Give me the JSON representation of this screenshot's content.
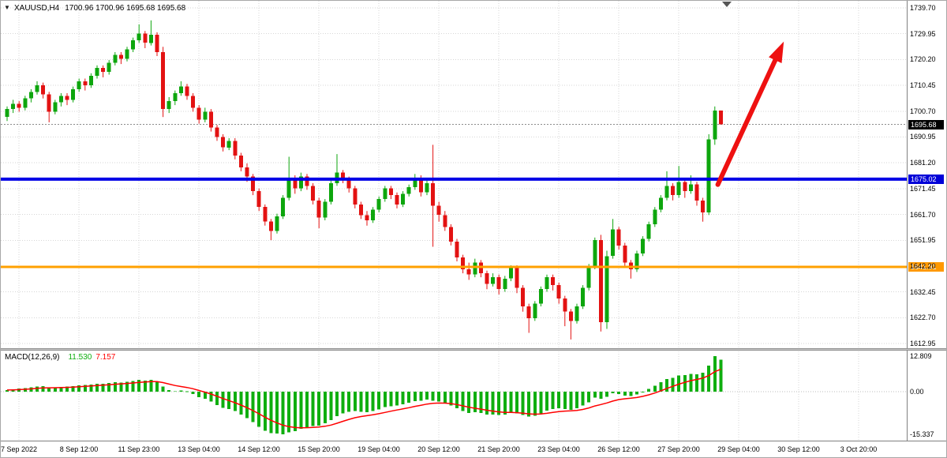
{
  "window": {
    "title": "XAUUSD,H4",
    "ohlc_text": "1700.96 1700.96 1695.68 1695.68"
  },
  "colors": {
    "up": "#0da60d",
    "down": "#e31212",
    "grid": "#d6d6d6",
    "current_line": "#8c8c8c",
    "blue_line": "#0000e6",
    "orange_line": "#ffa000",
    "signal_line": "#ff0000",
    "histogram": "#0fae0f",
    "arrow": "#ee1111",
    "tag_current_bg": "#000000",
    "tag_blue_bg": "#0000d8",
    "tag_orange_bg": "#ff9900",
    "axis_border": "#808080"
  },
  "chart_data": {
    "type": "candlestick",
    "symbol": "XAUUSD",
    "timeframe": "H4",
    "title": "XAUUSD,H4",
    "ohlc_display": [
      1700.96,
      1700.96,
      1695.68,
      1695.68
    ],
    "ylim": [
      1612.95,
      1739.7
    ],
    "grid": true,
    "price_labels": [
      1739.7,
      1729.95,
      1720.2,
      1710.45,
      1700.7,
      1690.95,
      1681.2,
      1671.45,
      1661.7,
      1651.95,
      1642.2,
      1632.45,
      1622.7,
      1612.95
    ],
    "time_labels": [
      {
        "text": "7 Sep 2022",
        "idx": 2
      },
      {
        "text": "8 Sep 12:00",
        "idx": 12
      },
      {
        "text": "11 Sep 23:00",
        "idx": 22
      },
      {
        "text": "13 Sep 04:00",
        "idx": 32
      },
      {
        "text": "14 Sep 12:00",
        "idx": 42
      },
      {
        "text": "15 Sep 20:00",
        "idx": 52
      },
      {
        "text": "19 Sep 04:00",
        "idx": 62
      },
      {
        "text": "20 Sep 12:00",
        "idx": 72
      },
      {
        "text": "21 Sep 20:00",
        "idx": 82
      },
      {
        "text": "23 Sep 04:00",
        "idx": 92
      },
      {
        "text": "26 Sep 12:00",
        "idx": 102
      },
      {
        "text": "27 Sep 20:00",
        "idx": 112
      },
      {
        "text": "29 Sep 04:00",
        "idx": 122
      },
      {
        "text": "30 Sep 12:00",
        "idx": 132
      },
      {
        "text": "3 Oct 20:00",
        "idx": 142
      }
    ],
    "candles": [
      [
        1698.5,
        1702.5,
        1697.0,
        1701.5
      ],
      [
        1701.5,
        1705.0,
        1700.0,
        1703.5
      ],
      [
        1703.5,
        1704.5,
        1700.5,
        1702.0
      ],
      [
        1702.0,
        1706.5,
        1701.0,
        1705.5
      ],
      [
        1705.5,
        1709.0,
        1704.0,
        1708.0
      ],
      [
        1708.0,
        1712.0,
        1707.0,
        1710.5
      ],
      [
        1710.5,
        1711.5,
        1705.5,
        1707.0
      ],
      [
        1707.0,
        1708.0,
        1696.5,
        1700.5
      ],
      [
        1700.5,
        1705.0,
        1699.5,
        1704.0
      ],
      [
        1704.0,
        1707.5,
        1702.5,
        1706.5
      ],
      [
        1706.5,
        1707.5,
        1703.0,
        1705.0
      ],
      [
        1705.0,
        1710.0,
        1704.0,
        1709.0
      ],
      [
        1709.0,
        1713.0,
        1708.0,
        1712.0
      ],
      [
        1712.0,
        1713.0,
        1708.5,
        1710.5
      ],
      [
        1710.5,
        1715.0,
        1709.5,
        1714.0
      ],
      [
        1714.0,
        1718.0,
        1713.0,
        1717.0
      ],
      [
        1717.0,
        1718.0,
        1713.5,
        1715.5
      ],
      [
        1715.5,
        1720.0,
        1714.5,
        1719.0
      ],
      [
        1719.0,
        1723.0,
        1718.0,
        1722.0
      ],
      [
        1722.0,
        1723.0,
        1718.5,
        1720.5
      ],
      [
        1720.5,
        1725.0,
        1719.5,
        1724.0
      ],
      [
        1724.0,
        1728.5,
        1723.0,
        1727.5
      ],
      [
        1727.5,
        1733.5,
        1726.5,
        1730.0
      ],
      [
        1730.0,
        1731.0,
        1724.5,
        1726.5
      ],
      [
        1726.5,
        1735.0,
        1725.5,
        1729.5
      ],
      [
        1729.5,
        1730.5,
        1721.5,
        1723.0
      ],
      [
        1723.0,
        1725.0,
        1698.5,
        1701.5
      ],
      [
        1701.5,
        1706.0,
        1700.0,
        1704.5
      ],
      [
        1704.5,
        1708.5,
        1703.0,
        1707.5
      ],
      [
        1707.5,
        1712.0,
        1706.5,
        1710.0
      ],
      [
        1710.0,
        1711.0,
        1705.0,
        1706.5
      ],
      [
        1706.5,
        1707.5,
        1700.5,
        1702.0
      ],
      [
        1702.0,
        1703.0,
        1696.0,
        1697.5
      ],
      [
        1697.5,
        1702.0,
        1696.5,
        1700.5
      ],
      [
        1700.5,
        1701.5,
        1693.0,
        1694.5
      ],
      [
        1694.5,
        1695.5,
        1689.5,
        1691.0
      ],
      [
        1691.0,
        1692.0,
        1685.5,
        1687.0
      ],
      [
        1687.0,
        1690.5,
        1686.0,
        1689.5
      ],
      [
        1689.5,
        1690.5,
        1682.5,
        1684.0
      ],
      [
        1684.0,
        1685.0,
        1678.0,
        1679.5
      ],
      [
        1679.5,
        1681.0,
        1674.0,
        1676.0
      ],
      [
        1676.0,
        1677.0,
        1669.0,
        1670.5
      ],
      [
        1670.5,
        1671.5,
        1663.0,
        1664.5
      ],
      [
        1664.5,
        1665.5,
        1657.5,
        1659.0
      ],
      [
        1659.0,
        1660.0,
        1652.0,
        1655.5
      ],
      [
        1655.5,
        1662.0,
        1654.5,
        1661.0
      ],
      [
        1661.0,
        1669.0,
        1660.0,
        1668.0
      ],
      [
        1668.0,
        1683.5,
        1667.0,
        1675.0
      ],
      [
        1675.0,
        1676.5,
        1669.5,
        1671.5
      ],
      [
        1671.5,
        1677.5,
        1670.5,
        1676.0
      ],
      [
        1676.0,
        1677.0,
        1671.0,
        1672.5
      ],
      [
        1672.5,
        1673.5,
        1665.5,
        1667.0
      ],
      [
        1667.0,
        1668.0,
        1656.5,
        1660.5
      ],
      [
        1660.5,
        1667.5,
        1659.5,
        1666.5
      ],
      [
        1666.5,
        1674.5,
        1665.5,
        1673.5
      ],
      [
        1673.5,
        1684.5,
        1672.5,
        1677.5
      ],
      [
        1677.5,
        1678.5,
        1673.5,
        1675.0
      ],
      [
        1675.0,
        1676.0,
        1670.0,
        1671.5
      ],
      [
        1671.5,
        1672.5,
        1664.0,
        1665.5
      ],
      [
        1665.5,
        1666.5,
        1660.0,
        1661.5
      ],
      [
        1661.5,
        1663.0,
        1657.5,
        1659.5
      ],
      [
        1659.5,
        1664.5,
        1658.5,
        1663.5
      ],
      [
        1663.5,
        1668.5,
        1662.5,
        1667.5
      ],
      [
        1667.5,
        1672.5,
        1666.5,
        1671.5
      ],
      [
        1671.5,
        1672.5,
        1667.5,
        1669.0
      ],
      [
        1669.0,
        1670.0,
        1664.0,
        1665.5
      ],
      [
        1665.5,
        1670.5,
        1664.5,
        1669.5
      ],
      [
        1669.5,
        1673.0,
        1668.5,
        1672.0
      ],
      [
        1672.0,
        1677.0,
        1671.0,
        1675.5
      ],
      [
        1675.5,
        1676.5,
        1668.5,
        1670.0
      ],
      [
        1670.0,
        1674.5,
        1669.0,
        1673.5
      ],
      [
        1673.5,
        1688.0,
        1649.5,
        1665.0
      ],
      [
        1665.0,
        1666.5,
        1659.0,
        1661.5
      ],
      [
        1661.5,
        1663.0,
        1655.5,
        1657.0
      ],
      [
        1657.0,
        1658.0,
        1650.0,
        1651.5
      ],
      [
        1651.5,
        1652.5,
        1644.0,
        1645.5
      ],
      [
        1645.5,
        1646.5,
        1639.5,
        1641.0
      ],
      [
        1641.0,
        1643.5,
        1637.0,
        1639.0
      ],
      [
        1639.0,
        1645.0,
        1638.0,
        1643.5
      ],
      [
        1643.5,
        1644.5,
        1638.0,
        1639.5
      ],
      [
        1639.5,
        1640.5,
        1633.5,
        1635.5
      ],
      [
        1635.5,
        1639.5,
        1634.5,
        1638.0
      ],
      [
        1638.0,
        1639.0,
        1631.5,
        1633.5
      ],
      [
        1633.5,
        1638.5,
        1632.5,
        1637.5
      ],
      [
        1637.5,
        1642.5,
        1636.5,
        1641.5
      ],
      [
        1641.5,
        1642.5,
        1632.0,
        1634.0
      ],
      [
        1634.0,
        1635.0,
        1625.0,
        1627.0
      ],
      [
        1627.0,
        1628.0,
        1617.0,
        1622.5
      ],
      [
        1622.5,
        1629.0,
        1621.5,
        1628.0
      ],
      [
        1628.0,
        1634.5,
        1627.0,
        1633.5
      ],
      [
        1633.5,
        1639.0,
        1632.5,
        1638.0
      ],
      [
        1638.0,
        1639.0,
        1633.0,
        1635.0
      ],
      [
        1635.0,
        1636.0,
        1628.0,
        1630.0
      ],
      [
        1630.0,
        1631.0,
        1619.5,
        1625.0
      ],
      [
        1625.0,
        1626.0,
        1614.5,
        1621.5
      ],
      [
        1621.5,
        1628.0,
        1620.5,
        1627.0
      ],
      [
        1627.0,
        1635.0,
        1626.0,
        1634.0
      ],
      [
        1634.0,
        1643.0,
        1633.0,
        1642.0
      ],
      [
        1642.0,
        1653.0,
        1641.0,
        1652.0
      ],
      [
        1652.0,
        1654.0,
        1617.5,
        1621.0
      ],
      [
        1621.0,
        1648.0,
        1618.5,
        1646.0
      ],
      [
        1646.0,
        1660.0,
        1645.0,
        1656.0
      ],
      [
        1656.0,
        1657.0,
        1648.5,
        1650.0
      ],
      [
        1650.0,
        1651.0,
        1642.0,
        1643.5
      ],
      [
        1643.5,
        1644.5,
        1637.5,
        1641.0
      ],
      [
        1641.0,
        1648.0,
        1640.0,
        1647.0
      ],
      [
        1647.0,
        1653.5,
        1646.0,
        1652.5
      ],
      [
        1652.5,
        1659.0,
        1651.5,
        1658.0
      ],
      [
        1658.0,
        1664.5,
        1657.0,
        1663.5
      ],
      [
        1663.5,
        1669.0,
        1662.5,
        1668.0
      ],
      [
        1668.0,
        1678.0,
        1667.0,
        1672.5
      ],
      [
        1672.5,
        1673.5,
        1667.0,
        1669.0
      ],
      [
        1669.0,
        1680.0,
        1668.0,
        1674.0
      ],
      [
        1674.0,
        1675.0,
        1668.0,
        1670.5
      ],
      [
        1670.5,
        1676.5,
        1669.5,
        1673.0
      ],
      [
        1673.0,
        1674.0,
        1665.0,
        1667.0
      ],
      [
        1667.0,
        1668.0,
        1659.0,
        1662.5
      ],
      [
        1662.5,
        1692.0,
        1661.5,
        1690.0
      ],
      [
        1690.0,
        1702.5,
        1688.0,
        1701.0
      ],
      [
        1700.96,
        1700.96,
        1695.68,
        1695.68
      ]
    ],
    "levels": {
      "current": {
        "value": 1695.68,
        "label": "1695.68"
      },
      "blue": {
        "value": 1675.02,
        "label": "1675.02"
      },
      "orange": {
        "value": 1641.91,
        "label": "1641.91"
      }
    },
    "macd": {
      "name": "MACD(12,26,9)",
      "main_display": "11.530",
      "signal_display": "7.157",
      "scale_labels": [
        {
          "text": "12.809",
          "value": 12.809
        },
        {
          "text": "0.00",
          "value": 0
        },
        {
          "text": "-15.337",
          "value": -15.337
        }
      ],
      "values": [
        0.6,
        0.9,
        1.1,
        1.3,
        1.6,
        1.9,
        2.0,
        1.6,
        1.5,
        1.7,
        1.8,
        2.0,
        2.3,
        2.4,
        2.6,
        2.9,
        2.9,
        3.1,
        3.4,
        3.3,
        3.5,
        3.8,
        4.2,
        4.0,
        4.3,
        3.6,
        1.8,
        0.6,
        0.2,
        0.4,
        0.1,
        -0.8,
        -2.0,
        -2.6,
        -3.6,
        -4.8,
        -5.8,
        -6.2,
        -7.0,
        -8.2,
        -9.5,
        -11.0,
        -12.6,
        -14.0,
        -14.9,
        -15.0,
        -15.337,
        -14.6,
        -14.2,
        -13.4,
        -12.8,
        -12.4,
        -12.2,
        -11.4,
        -10.2,
        -8.8,
        -7.8,
        -7.2,
        -7.0,
        -7.2,
        -7.4,
        -7.0,
        -6.4,
        -5.6,
        -5.2,
        -5.0,
        -4.6,
        -4.0,
        -3.4,
        -3.2,
        -2.8,
        -3.2,
        -3.6,
        -4.2,
        -5.0,
        -6.0,
        -7.0,
        -7.6,
        -7.4,
        -7.6,
        -8.2,
        -8.2,
        -8.4,
        -8.2,
        -7.6,
        -7.8,
        -8.4,
        -9.0,
        -8.6,
        -7.8,
        -6.8,
        -6.2,
        -6.0,
        -6.2,
        -6.6,
        -6.0,
        -5.0,
        -3.8,
        -2.2,
        -2.6,
        -1.8,
        -0.6,
        -0.8,
        -1.4,
        -1.6,
        -1.0,
        0.0,
        1.0,
        2.2,
        3.4,
        4.6,
        5.0,
        5.8,
        6.0,
        6.4,
        6.2,
        6.8,
        9.4,
        12.809,
        11.53
      ]
    },
    "arrow": {
      "from_idx": 118.5,
      "from_price": 1673.0,
      "to_idx": 129.5,
      "to_price": 1727.0
    }
  }
}
